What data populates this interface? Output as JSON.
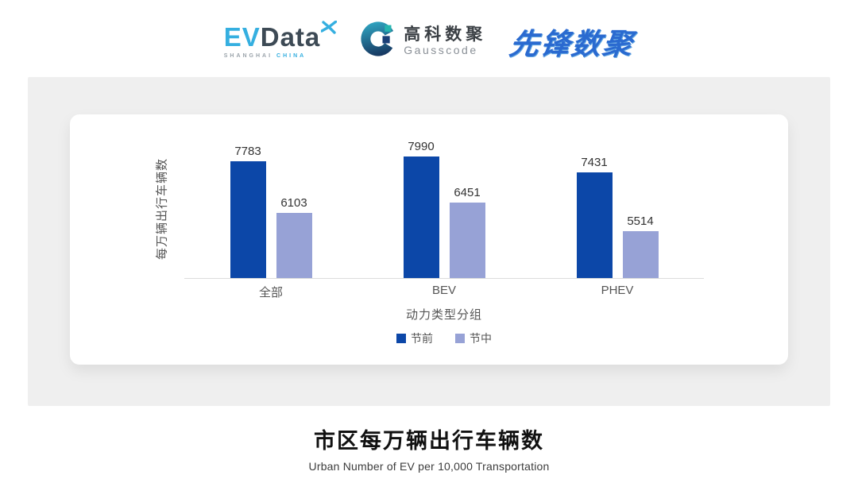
{
  "header": {
    "evdata": {
      "ev": "EV",
      "data": "Data",
      "sub_left": "SHANGHAI",
      "sub_right": "CHINA",
      "brand_cyan": "#35AFE0",
      "brand_dark": "#3D4A55"
    },
    "gausscode": {
      "cn": "高科数聚",
      "en": "Gausscode",
      "icon_teal": "#25B5B0",
      "icon_navy": "#1B3F77"
    },
    "xianfeng": {
      "text": "先锋数聚",
      "brand_blue": "#2A6AD0"
    }
  },
  "chart_data": {
    "type": "bar",
    "title": "",
    "categories": [
      "全部",
      "BEV",
      "PHEV"
    ],
    "series": [
      {
        "name": "节前",
        "color": "#0C47A8",
        "values": [
          7783,
          7990,
          7431
        ]
      },
      {
        "name": "节中",
        "color": "#97A2D6",
        "values": [
          6103,
          6451,
          5514
        ]
      }
    ],
    "xlabel": "动力类型分组",
    "ylabel": "每万辆出行车辆数",
    "ylim": [
      4000,
      8500
    ],
    "grid": false,
    "value_labels": true,
    "legend_position": "bottom",
    "axis_line_color": "#dcdcdc"
  },
  "footer": {
    "title": "市区每万辆出行车辆数",
    "subtitle": "Urban Number of EV per 10,000 Transportation"
  }
}
